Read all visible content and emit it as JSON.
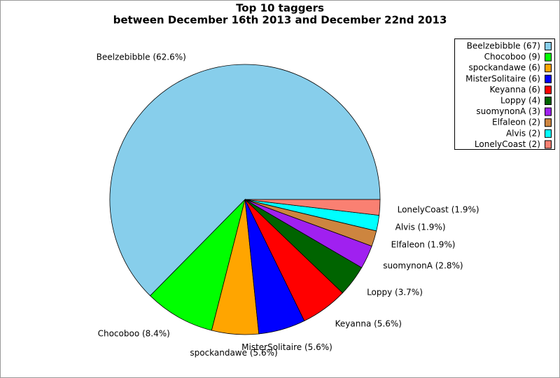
{
  "chart_data": {
    "type": "pie",
    "title": "Top 10 taggers",
    "subtitle": "between December 16th 2013 and December 22nd 2013",
    "categories": [
      "Beelzebibble",
      "Chocoboo",
      "spockandawe",
      "MisterSolitaire",
      "Keyanna",
      "Loppy",
      "suomynonA",
      "Elfaleon",
      "Alvis",
      "LonelyCoast"
    ],
    "values": [
      67,
      9,
      6,
      6,
      6,
      4,
      3,
      2,
      2,
      2
    ],
    "value_labels": [
      "Beelzebibble (62.6%)",
      "Chocoboo (8.4%)",
      "spockandawe (5.6%)",
      "MisterSolitaire (5.6%)",
      "Keyanna (5.6%)",
      "Loppy (3.7%)",
      "suomynonA (2.8%)",
      "Elfaleon (1.9%)",
      "Alvis (1.9%)",
      "LonelyCoast (1.9%)"
    ],
    "legend_labels": [
      "Beelzebibble (67)",
      "Chocoboo (9)",
      "spockandawe (6)",
      "MisterSolitaire (6)",
      "Keyanna (6)",
      "Loppy (4)",
      "suomynonA (3)",
      "Elfaleon (2)",
      "Alvis (2)",
      "LonelyCoast (2)"
    ],
    "colors": [
      "#87ceeb",
      "#00ff00",
      "#ffa500",
      "#0000ff",
      "#ff0000",
      "#006400",
      "#a020f0",
      "#cd853f",
      "#00ffff",
      "#fa8072"
    ],
    "legend": "upper right"
  }
}
